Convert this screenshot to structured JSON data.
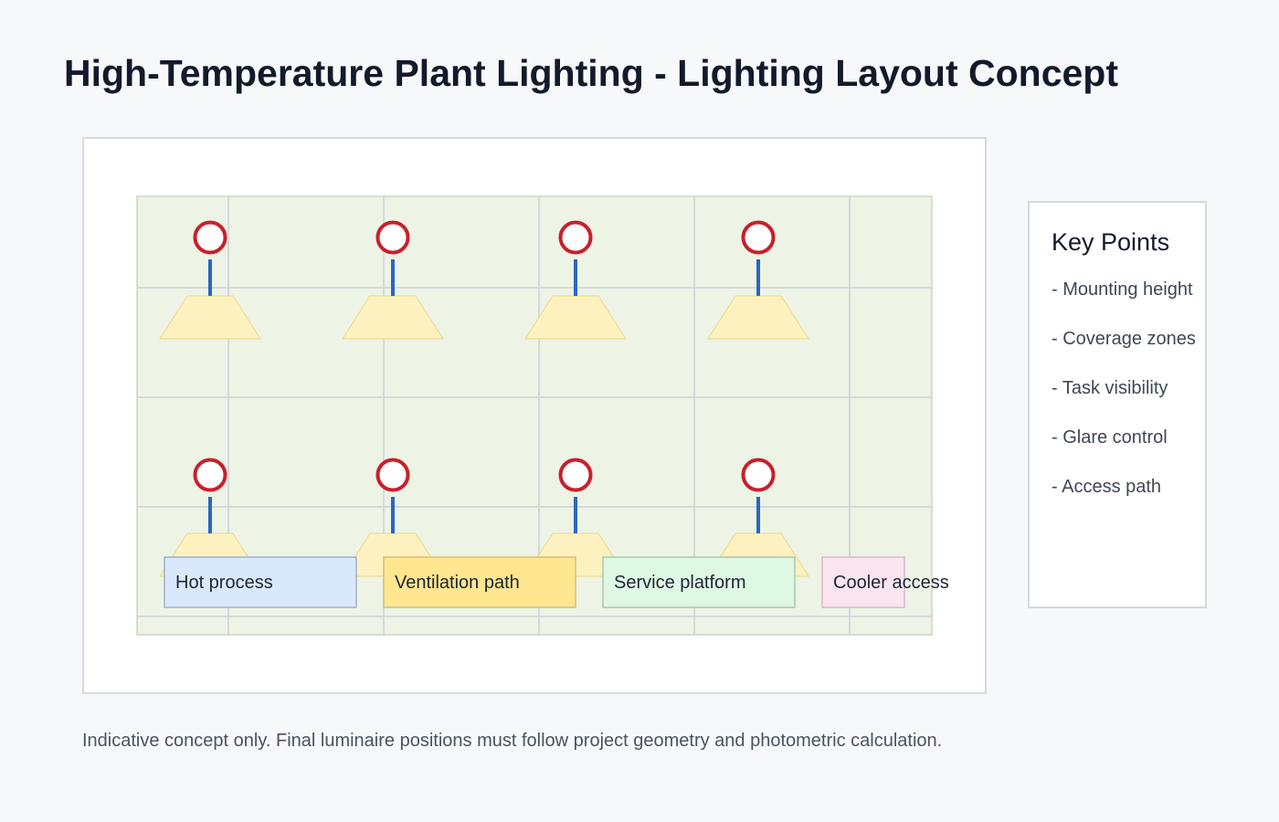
{
  "title": "High-Temperature Plant Lighting - Lighting Layout Concept",
  "colors": {
    "floor": "#edf3e5",
    "grid_line": "#ccd2d8",
    "fixture_ring": "#c8202b",
    "fixture_stem": "#2a67c4",
    "reflector": "#fdf1bf"
  },
  "luminaires": {
    "rows": 2,
    "per_row": 4,
    "icon": "high-bay-luminaire-icon"
  },
  "zones": [
    {
      "label": "Hot process",
      "fill": "#dae8fc",
      "stroke": "#9eb3cf"
    },
    {
      "label": "Ventilation path",
      "fill": "#ffe68f",
      "stroke": "#cfc07d"
    },
    {
      "label": "Service platform",
      "fill": "#def8e4",
      "stroke": "#a9c7b1"
    },
    {
      "label": "Cooler access",
      "fill": "#fae4f0",
      "stroke": "#d6b9c9"
    }
  ],
  "key_points": {
    "title": "Key Points",
    "items": [
      "- Mounting height",
      "- Coverage zones",
      "- Task visibility",
      "- Glare control",
      "- Access path"
    ]
  },
  "footnote": "Indicative concept only. Final luminaire positions must follow project geometry and photometric calculation."
}
